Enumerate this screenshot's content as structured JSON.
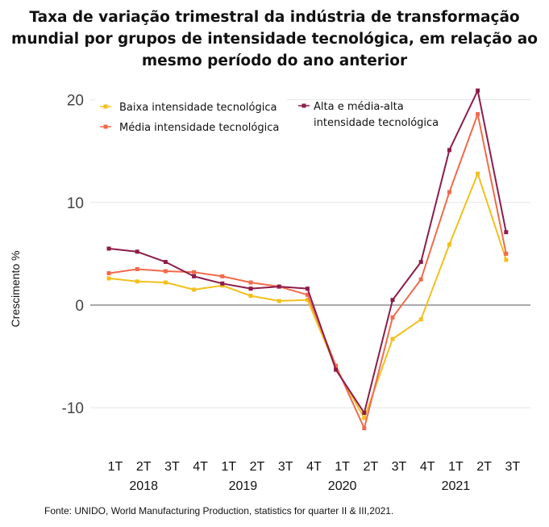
{
  "chart_data": {
    "type": "line",
    "title": "Taxa de variação trimestral da indústria de transformação mundial por grupos de intensidade tecnológica, em relação ao mesmo período do ano anterior",
    "ylabel": "Crescimento %",
    "ylim": [
      -13,
      21.5
    ],
    "yticks": [
      -10,
      0,
      10,
      20
    ],
    "quarters": [
      "1T",
      "2T",
      "3T",
      "4T",
      "1T",
      "2T",
      "3T",
      "4T",
      "1T",
      "2T",
      "3T",
      "4T",
      "1T",
      "2T",
      "3T"
    ],
    "years": [
      {
        "label": "2018",
        "from": 0,
        "to": 2
      },
      {
        "label": "2019",
        "from": 4,
        "to": 5
      },
      {
        "label": "2020",
        "from": 8,
        "to": 8
      },
      {
        "label": "2021",
        "from": 12,
        "to": 12
      }
    ],
    "series": [
      {
        "name": "Baixa intensidade tecnológica",
        "color": "#f2c01e",
        "values": [
          2.6,
          2.3,
          2.2,
          1.5,
          1.9,
          0.9,
          0.4,
          0.5,
          -6.1,
          -11.0,
          -3.3,
          -1.4,
          5.9,
          12.8,
          4.4
        ]
      },
      {
        "name": "Média intensidade tecnológica",
        "color": "#f06a4c",
        "values": [
          3.1,
          3.5,
          3.3,
          3.2,
          2.8,
          2.2,
          1.8,
          1.0,
          -5.9,
          -12.0,
          -1.2,
          2.5,
          11.0,
          18.6,
          5.0
        ]
      },
      {
        "name": "Alta e média-alta intensidade tecnológica",
        "color": "#8c1d4a",
        "values": [
          5.5,
          5.2,
          4.2,
          2.8,
          2.1,
          1.6,
          1.8,
          1.6,
          -6.3,
          -10.5,
          0.5,
          4.2,
          15.1,
          20.9,
          7.1
        ]
      }
    ],
    "legend": {
      "position": "top",
      "entries": [
        {
          "text": [
            "Baixa intensidade tecnológica"
          ],
          "series": 0
        },
        {
          "text": [
            "Média intensidade tecnológica"
          ],
          "series": 1
        },
        {
          "text": [
            "Alta e média-alta",
            "intensidade tecnológica"
          ],
          "series": 2
        }
      ]
    },
    "source": "Fonte: UNIDO, World Manufacturing Production, statistics for quarter II & III,2021."
  }
}
